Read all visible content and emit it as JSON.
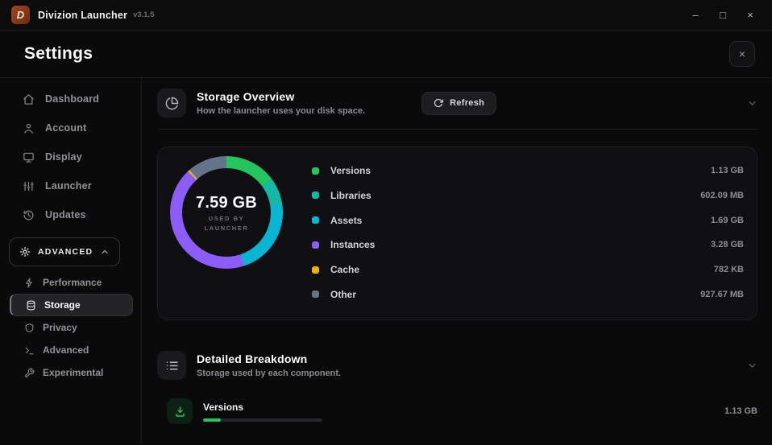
{
  "titlebar": {
    "app_name": "Divizion Launcher",
    "version": "v3.1.5",
    "logo_glyph": "D",
    "window_controls": {
      "minimize": "–",
      "maximize": "□",
      "close": "×"
    }
  },
  "header": {
    "title": "Settings",
    "close_glyph": "×"
  },
  "sidebar": {
    "items": [
      {
        "label": "Dashboard",
        "icon": "home-icon"
      },
      {
        "label": "Account",
        "icon": "user-icon"
      },
      {
        "label": "Display",
        "icon": "monitor-icon"
      },
      {
        "label": "Launcher",
        "icon": "sliders-icon"
      },
      {
        "label": "Updates",
        "icon": "history-icon"
      }
    ],
    "advanced_group": {
      "label": "ADVANCED",
      "expanded": true,
      "items": [
        {
          "label": "Performance",
          "icon": "lightning-icon",
          "selected": false
        },
        {
          "label": "Storage",
          "icon": "database-icon",
          "selected": true
        },
        {
          "label": "Privacy",
          "icon": "shield-icon",
          "selected": false
        },
        {
          "label": "Advanced",
          "icon": "terminal-icon",
          "selected": false
        },
        {
          "label": "Experimental",
          "icon": "wrench-icon",
          "selected": false
        }
      ]
    }
  },
  "storage_overview": {
    "title": "Storage Overview",
    "subtitle": "How the launcher uses your disk space.",
    "refresh_label": "Refresh",
    "donut_center_value": "7.59 GB",
    "donut_center_line1": "USED BY",
    "donut_center_line2": "LAUNCHER"
  },
  "chart_data": {
    "type": "pie",
    "title": "Storage Overview",
    "total_display": "7.59 GB",
    "categories": [
      "Versions",
      "Libraries",
      "Assets",
      "Instances",
      "Cache",
      "Other"
    ],
    "values_display": [
      "1.13 GB",
      "602.09 MB",
      "1.69 GB",
      "3.28 GB",
      "782 KB",
      "927.67 MB"
    ],
    "values_gb": [
      1.13,
      0.58798,
      1.69,
      3.28,
      7.5e-07,
      0.90593
    ],
    "colors": [
      "#22c55e",
      "#14b8a6",
      "#08b6d4",
      "#8b5cf6",
      "#eab308",
      "#64748b"
    ],
    "legend_position": "right",
    "donut": true,
    "start_angle_deg": 0
  },
  "detailed_breakdown": {
    "title": "Detailed Breakdown",
    "subtitle": "Storage used by each component.",
    "rows": [
      {
        "label": "Versions",
        "value": "1.13 GB",
        "percent": 14.9,
        "color": "#22c55e",
        "icon_bg": "rgba(34,197,94,0.12)",
        "icon": "download-icon"
      }
    ]
  }
}
